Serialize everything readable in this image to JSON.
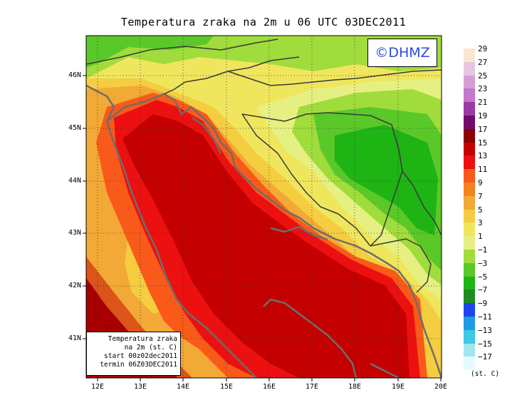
{
  "title": "Temperatura zraka na 2m u 06 UTC 03DEC2011",
  "watermark": "©DHMZ",
  "info_box": {
    "line1": "Temperatura zraka",
    "line2": "na 2m (st. C)",
    "line3": "start 00z02dec2011",
    "line4": "termin 06Z03DEC2011"
  },
  "lat_labels": [
    "46N",
    "45N",
    "44N",
    "43N",
    "42N",
    "41N"
  ],
  "lon_labels": [
    "12E",
    "13E",
    "14E",
    "15E",
    "16E",
    "17E",
    "18E",
    "19E",
    "20E"
  ],
  "legend": {
    "unit": "(st. C)",
    "labels": [
      "29",
      "27",
      "25",
      "23",
      "21",
      "19",
      "17",
      "15",
      "13",
      "11",
      "9",
      "7",
      "5",
      "3",
      "1",
      "−1",
      "−3",
      "−5",
      "−7",
      "−9",
      "−11",
      "−13",
      "−15",
      "−17"
    ],
    "colors": [
      "#fbe6d2",
      "#e7c6e0",
      "#d79ed6",
      "#c378c9",
      "#9a3aa4",
      "#730a6e",
      "#8c0000",
      "#c40000",
      "#ec1010",
      "#fa5a19",
      "#f5821e",
      "#f2a935",
      "#f4cd41",
      "#f0e65e",
      "#e6f082",
      "#a0dc3c",
      "#5ac828",
      "#1eb414",
      "#1e8c1e",
      "#1e46f0",
      "#1e9ae6",
      "#3cc8e6",
      "#a0e6f0",
      "#e6faff"
    ]
  },
  "map_colors": {
    "cold_green": "#1eb414",
    "green": "#5ac828",
    "light_green": "#a0dc3c",
    "pale": "#e6f082",
    "yellow": "#f0e65e",
    "ochre": "#f4cd41",
    "orange": "#f2a935",
    "dark_orange": "#f5821e",
    "red_orange": "#fa5a19",
    "red": "#ec1010",
    "deep_red": "#c40000",
    "maroon": "#8c0000",
    "coast": "#6e6e6e",
    "border": "#3a3a3a"
  }
}
